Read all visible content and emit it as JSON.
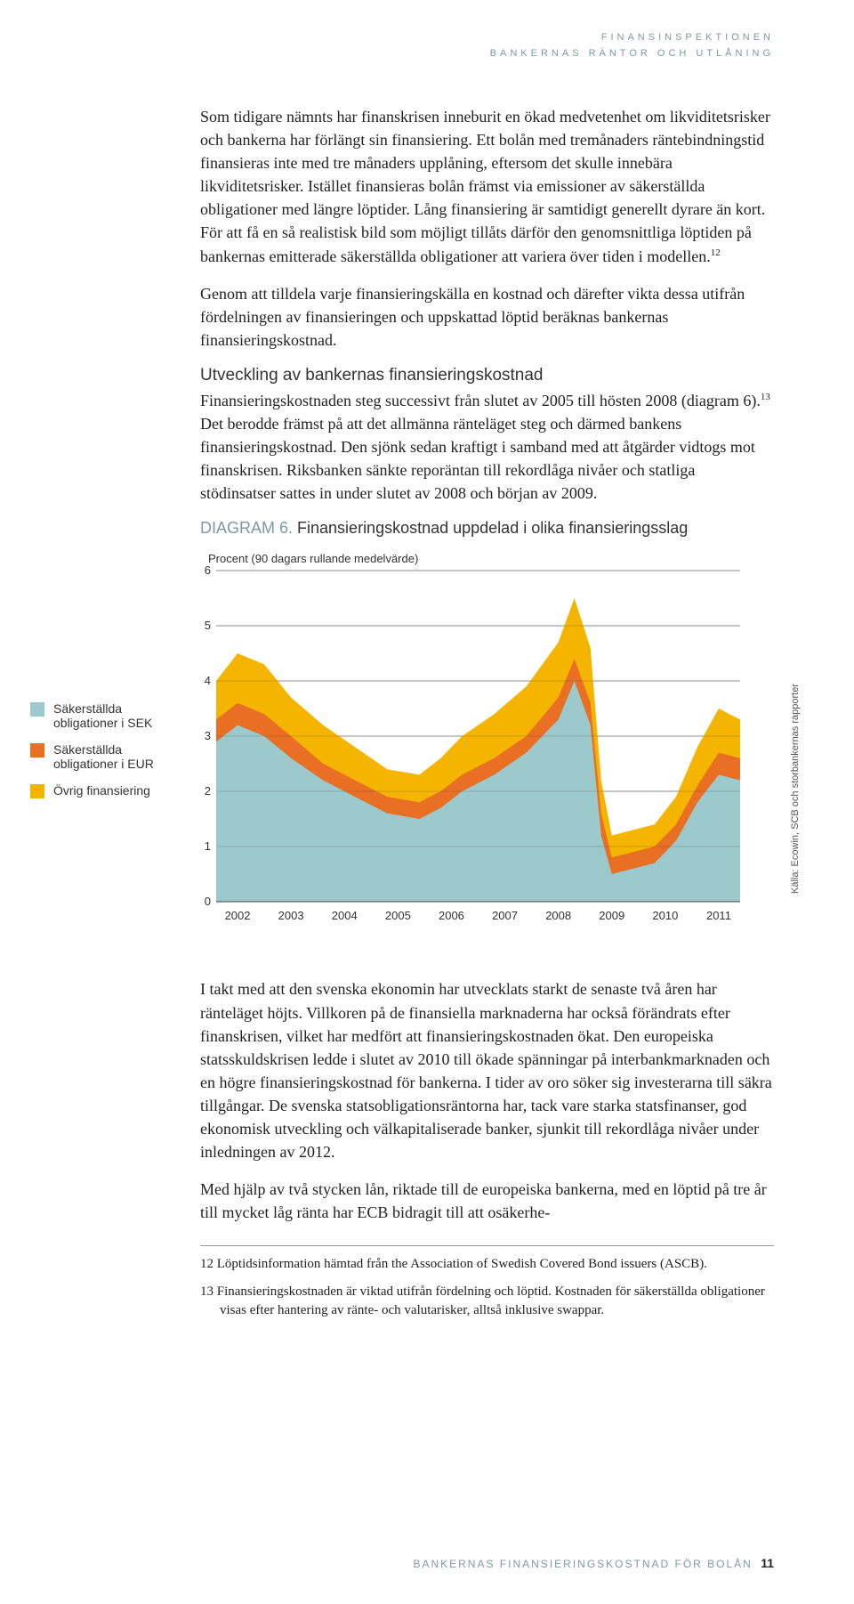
{
  "header": {
    "line1": "FINANSINSPEKTIONEN",
    "line2": "BANKERNAS RÄNTOR OCH UTLÅNING"
  },
  "paragraphs": {
    "p1": "Som tidigare nämnts har finanskrisen inneburit en ökad medvetenhet om likviditetsrisker och bankerna har förlängt sin finansiering. Ett bolån med tremånaders räntebindningstid finansieras inte med tre månaders upplåning, eftersom det skulle innebära likviditetsrisker. Istället finansieras bolån främst via emissioner av säkerställda obligationer med längre löptider. Lång finansiering är samtidigt generellt dyrare än kort. För att få en så realistisk bild som möjligt tillåts därför den genomsnittliga löptiden på bankernas emitterade säkerställda obligationer att variera över tiden i modellen.",
    "p1_sup": "12",
    "p2": "Genom att tilldela varje finansieringskälla en kostnad och därefter vikta dessa utifrån fördelningen av finansieringen och uppskattad löptid beräknas bankernas finansieringskostnad.",
    "sub1": "Utveckling av bankernas finansieringskostnad",
    "p3a": "Finansieringskostnaden steg successivt från slutet av 2005 till hösten 2008 (diagram 6).",
    "p3_sup": "13",
    "p3b": " Det berodde främst på att det allmänna ränteläget steg och därmed bankens finansieringskostnad. Den sjönk sedan kraftigt i samband med att åtgärder vidtogs mot finanskrisen. Riksbanken sänkte reporäntan till rekordlåga nivåer och statliga stödinsatser sattes in under slutet av 2008 och början av 2009.",
    "diagram_label": "DIAGRAM 6.",
    "diagram_title": " Finansieringskostnad uppdelad i olika finansieringsslag",
    "p4": "I takt med att den svenska ekonomin har utvecklats starkt de senaste två åren har ränteläget höjts. Villkoren på de finansiella marknaderna har också förändrats efter finanskrisen, vilket har medfört att finansieringskostnaden ökat. Den europeiska statsskuldskrisen ledde i slutet av 2010 till ökade spänningar på interbankmarknaden och en högre finansieringskostnad för bankerna. I tider av oro söker sig investerarna till säkra tillgångar. De svenska statsobligationsräntorna har, tack vare starka statsfinanser, god ekonomisk utveckling och välkapitaliserade banker, sjunkit till rekordlåga nivåer under inledningen av 2012.",
    "p5": "Med hjälp av två stycken lån, riktade till de europeiska bankerna, med en löptid på tre år till mycket låg ränta har ECB bidragit till att osäkerhe-"
  },
  "chart": {
    "y_caption": "Procent  (90 dagars rullande medelvärde)",
    "type": "stacked-area",
    "ylim": [
      0,
      6
    ],
    "ytick_step": 1,
    "yticks": [
      "0",
      "1",
      "2",
      "3",
      "4",
      "5",
      "6"
    ],
    "xticks": [
      "2002",
      "2003",
      "2004",
      "2005",
      "2006",
      "2007",
      "2008",
      "2009",
      "2010",
      "2011"
    ],
    "background_color": "#ffffff",
    "grid_color": "#444444",
    "source": "Källa: Ecowin, SCB och storbankernas rapporter",
    "legend": [
      {
        "label": "Säkerställda obligationer i SEK",
        "color": "#9cc9cc"
      },
      {
        "label": "Säkerställda obligationer i EUR",
        "color": "#e86f24"
      },
      {
        "label": "Övrig finansiering",
        "color": "#f5b400"
      }
    ],
    "series_top_values": {
      "comment": "cumulative stack top values sampled across time axis (0..9.8 ~ years 2002..end2011)",
      "x": [
        0,
        0.4,
        0.9,
        1.4,
        2.0,
        2.6,
        3.2,
        3.8,
        4.2,
        4.6,
        5.2,
        5.8,
        6.4,
        6.7,
        7.0,
        7.2,
        7.4,
        7.8,
        8.2,
        8.6,
        9.0,
        9.4,
        9.8
      ],
      "sek_top": [
        2.9,
        3.2,
        3.0,
        2.6,
        2.2,
        1.9,
        1.6,
        1.5,
        1.7,
        2.0,
        2.3,
        2.7,
        3.3,
        4.0,
        3.2,
        1.2,
        0.5,
        0.6,
        0.7,
        1.1,
        1.8,
        2.3,
        2.2
      ],
      "eur_top": [
        3.3,
        3.6,
        3.4,
        3.0,
        2.5,
        2.2,
        1.9,
        1.8,
        2.0,
        2.3,
        2.6,
        3.0,
        3.7,
        4.4,
        3.6,
        1.6,
        0.8,
        0.9,
        1.0,
        1.4,
        2.1,
        2.7,
        2.6
      ],
      "ovrig_top": [
        4.0,
        4.5,
        4.3,
        3.7,
        3.2,
        2.8,
        2.4,
        2.3,
        2.6,
        3.0,
        3.4,
        3.9,
        4.7,
        5.5,
        4.6,
        2.2,
        1.2,
        1.3,
        1.4,
        1.9,
        2.8,
        3.5,
        3.3
      ]
    }
  },
  "footnotes": {
    "f12": "12  Löptidsinformation hämtad från the Association of Swedish Covered Bond issuers (ASCB).",
    "f13": "13  Finansieringskostnaden är viktad utifrån fördelning och löptid. Kostnaden för säkerställda obligationer visas efter hantering av ränte- och valutarisker, alltså inklusive swappar."
  },
  "footer": {
    "text": "BANKERNAS FINANSIERINGSKOSTNAD FÖR BOLÅN",
    "page": "11"
  }
}
